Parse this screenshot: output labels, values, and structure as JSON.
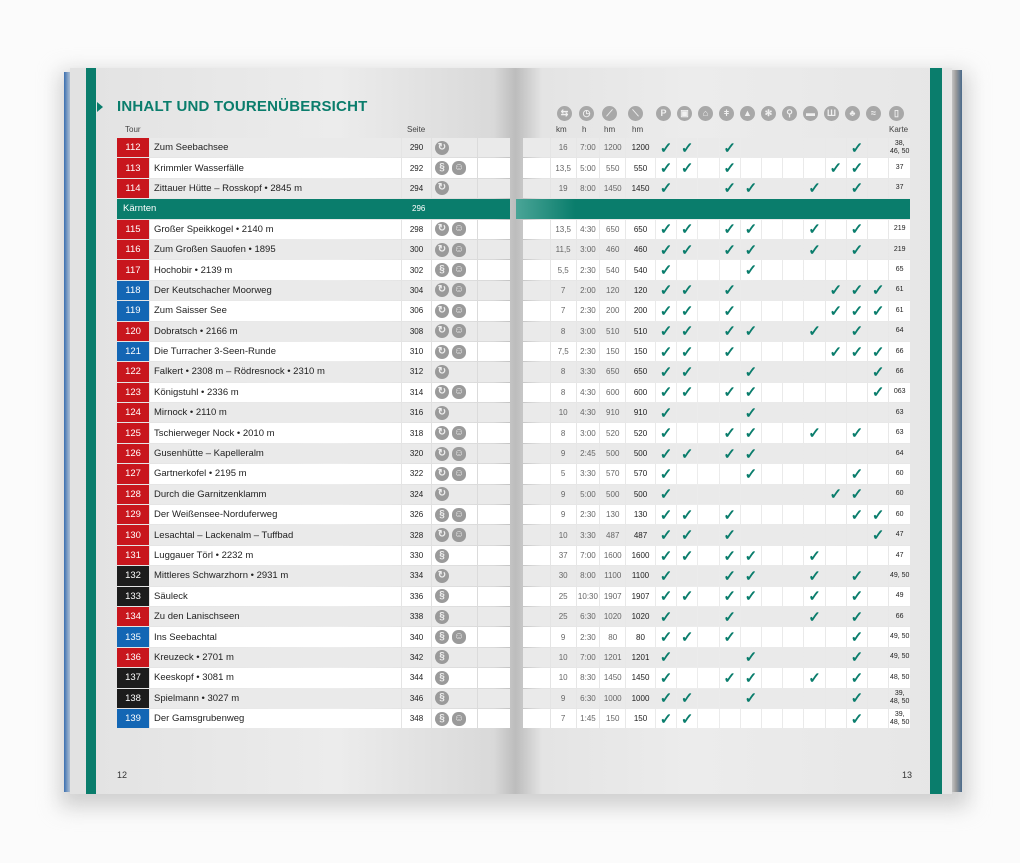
{
  "title": "INHALT UND TOURENÜBERSICHT",
  "headers": {
    "tour": "Tour",
    "seite": "Seite",
    "km": "km",
    "h": "h",
    "hm_up": "hm",
    "hm_down": "hm",
    "karte": "Karte"
  },
  "feature_icons": [
    "signpost-icon",
    "clock-icon",
    "ascent-icon",
    "descent-icon",
    "parking-icon",
    "bus-icon",
    "cable-car-icon",
    "restaurant-icon",
    "hut-icon",
    "winter-icon",
    "bike-icon",
    "bed-icon",
    "museum-icon",
    "tree-icon",
    "swimming-icon",
    "map-icon"
  ],
  "feature_glyphs": [
    "⇆",
    "◷",
    "⟋",
    "⟍",
    "P",
    "▣",
    "⌂",
    "ǂ",
    "▲",
    "✻",
    "⚲",
    "▬",
    "Ш",
    "♣",
    "≈",
    "▯"
  ],
  "colors": {
    "accent": "#0a7d6c",
    "red": "#c8161d",
    "blue": "#1366b4",
    "black": "#1c1c1c"
  },
  "check_glyph": "✓",
  "type_glyphs": {
    "loop": "↻",
    "line": "§",
    "kid": "☺"
  },
  "section": {
    "label": "Kärnten",
    "page": "296"
  },
  "rows_before_section": [
    {
      "num": "112",
      "color": "red",
      "name": "Zum Seebachsee",
      "page": "290",
      "types": [
        "loop"
      ],
      "km": "16",
      "h": "7:00",
      "up": "1200",
      "down": "1200",
      "checks": [
        0,
        1,
        3,
        9
      ],
      "karte": "38, 46, 50"
    },
    {
      "num": "113",
      "color": "red",
      "name": "Krimmler Wasserfälle",
      "page": "292",
      "types": [
        "line",
        "kid"
      ],
      "km": "13,5",
      "h": "5:00",
      "up": "550",
      "down": "550",
      "checks": [
        0,
        1,
        3,
        8,
        9
      ],
      "karte": "37"
    },
    {
      "num": "114",
      "color": "red",
      "name": "Zittauer Hütte – Rosskopf • 2845 m",
      "page": "294",
      "types": [
        "loop"
      ],
      "km": "19",
      "h": "8:00",
      "up": "1450",
      "down": "1450",
      "checks": [
        0,
        3,
        4,
        7,
        9
      ],
      "karte": "37"
    }
  ],
  "rows_after_section": [
    {
      "num": "115",
      "color": "red",
      "name": "Großer Speikkogel • 2140 m",
      "page": "298",
      "types": [
        "loop",
        "kid"
      ],
      "km": "13,5",
      "h": "4:30",
      "up": "650",
      "down": "650",
      "checks": [
        0,
        1,
        3,
        4,
        7,
        9
      ],
      "karte": "219"
    },
    {
      "num": "116",
      "color": "red",
      "name": "Zum Großen Sauofen • 1895",
      "page": "300",
      "types": [
        "loop",
        "kid"
      ],
      "km": "11,5",
      "h": "3:00",
      "up": "460",
      "down": "460",
      "checks": [
        0,
        1,
        3,
        4,
        7,
        9
      ],
      "karte": "219"
    },
    {
      "num": "117",
      "color": "red",
      "name": "Hochobir • 2139 m",
      "page": "302",
      "types": [
        "line",
        "kid"
      ],
      "km": "5,5",
      "h": "2:30",
      "up": "540",
      "down": "540",
      "checks": [
        0,
        4
      ],
      "karte": "65"
    },
    {
      "num": "118",
      "color": "blue",
      "name": "Der Keutschacher Moorweg",
      "page": "304",
      "types": [
        "loop",
        "kid"
      ],
      "km": "7",
      "h": "2:00",
      "up": "120",
      "down": "120",
      "checks": [
        0,
        1,
        3,
        8,
        9,
        10
      ],
      "karte": "61"
    },
    {
      "num": "119",
      "color": "blue",
      "name": "Zum Saisser See",
      "page": "306",
      "types": [
        "loop",
        "kid"
      ],
      "km": "7",
      "h": "2:30",
      "up": "200",
      "down": "200",
      "checks": [
        0,
        1,
        3,
        8,
        9,
        10
      ],
      "karte": "61"
    },
    {
      "num": "120",
      "color": "red",
      "name": "Dobratsch • 2166 m",
      "page": "308",
      "types": [
        "loop",
        "kid"
      ],
      "km": "8",
      "h": "3:00",
      "up": "510",
      "down": "510",
      "checks": [
        0,
        1,
        3,
        4,
        7,
        9
      ],
      "karte": "64"
    },
    {
      "num": "121",
      "color": "blue",
      "name": "Die Turracher 3-Seen-Runde",
      "page": "310",
      "types": [
        "loop",
        "kid"
      ],
      "km": "7,5",
      "h": "2:30",
      "up": "150",
      "down": "150",
      "checks": [
        0,
        1,
        3,
        8,
        9,
        10
      ],
      "karte": "66"
    },
    {
      "num": "122",
      "color": "red",
      "name": "Falkert • 2308 m – Rödresnock • 2310 m",
      "page": "312",
      "types": [
        "loop"
      ],
      "km": "8",
      "h": "3:30",
      "up": "650",
      "down": "650",
      "checks": [
        0,
        1,
        4,
        10
      ],
      "karte": "66"
    },
    {
      "num": "123",
      "color": "red",
      "name": "Königstuhl • 2336 m",
      "page": "314",
      "types": [
        "loop",
        "kid"
      ],
      "km": "8",
      "h": "4:30",
      "up": "600",
      "down": "600",
      "checks": [
        0,
        1,
        3,
        4,
        10
      ],
      "karte": "063"
    },
    {
      "num": "124",
      "color": "red",
      "name": "Mirnock • 2110 m",
      "page": "316",
      "types": [
        "loop"
      ],
      "km": "10",
      "h": "4:30",
      "up": "910",
      "down": "910",
      "checks": [
        0,
        4
      ],
      "karte": "63"
    },
    {
      "num": "125",
      "color": "red",
      "name": "Tschierweger Nock • 2010 m",
      "page": "318",
      "types": [
        "loop",
        "kid"
      ],
      "km": "8",
      "h": "3:00",
      "up": "520",
      "down": "520",
      "checks": [
        0,
        3,
        4,
        7,
        9
      ],
      "karte": "63"
    },
    {
      "num": "126",
      "color": "red",
      "name": "Gusenhütte – Kapelleralm",
      "page": "320",
      "types": [
        "loop",
        "kid"
      ],
      "km": "9",
      "h": "2:45",
      "up": "500",
      "down": "500",
      "checks": [
        0,
        1,
        3,
        4
      ],
      "karte": "64"
    },
    {
      "num": "127",
      "color": "red",
      "name": "Gartnerkofel • 2195 m",
      "page": "322",
      "types": [
        "loop",
        "kid"
      ],
      "km": "5",
      "h": "3:30",
      "up": "570",
      "down": "570",
      "checks": [
        0,
        4,
        9
      ],
      "karte": "60"
    },
    {
      "num": "128",
      "color": "red",
      "name": "Durch die Garnitzenklamm",
      "page": "324",
      "types": [
        "loop"
      ],
      "km": "9",
      "h": "5:00",
      "up": "500",
      "down": "500",
      "checks": [
        0,
        8,
        9
      ],
      "karte": "60"
    },
    {
      "num": "129",
      "color": "red",
      "name": "Der Weißensee-Norduferweg",
      "page": "326",
      "types": [
        "line",
        "kid"
      ],
      "km": "9",
      "h": "2:30",
      "up": "130",
      "down": "130",
      "checks": [
        0,
        1,
        3,
        9,
        10
      ],
      "karte": "60"
    },
    {
      "num": "130",
      "color": "red",
      "name": "Lesachtal – Lackenalm – Tuffbad",
      "page": "328",
      "types": [
        "loop",
        "kid"
      ],
      "km": "10",
      "h": "3:30",
      "up": "487",
      "down": "487",
      "checks": [
        0,
        1,
        3,
        10
      ],
      "karte": "47"
    },
    {
      "num": "131",
      "color": "red",
      "name": "Luggauer Törl • 2232 m",
      "page": "330",
      "types": [
        "line"
      ],
      "km": "37",
      "h": "7:00",
      "up": "1600",
      "down": "1600",
      "checks": [
        0,
        1,
        3,
        4,
        7
      ],
      "karte": "47"
    },
    {
      "num": "132",
      "color": "black",
      "name": "Mittleres Schwarzhorn • 2931 m",
      "page": "334",
      "types": [
        "loop"
      ],
      "km": "30",
      "h": "8:00",
      "up": "1100",
      "down": "1100",
      "checks": [
        0,
        3,
        4,
        7,
        9
      ],
      "karte": "49, 50"
    },
    {
      "num": "133",
      "color": "black",
      "name": "Säuleck",
      "page": "336",
      "types": [
        "line"
      ],
      "km": "25",
      "h": "10:30",
      "up": "1907",
      "down": "1907",
      "checks": [
        0,
        1,
        3,
        4,
        7,
        9
      ],
      "karte": "49"
    },
    {
      "num": "134",
      "color": "red",
      "name": "Zu den Lanischseen",
      "page": "338",
      "types": [
        "line"
      ],
      "km": "25",
      "h": "6:30",
      "up": "1020",
      "down": "1020",
      "checks": [
        0,
        3,
        7,
        9
      ],
      "karte": "66"
    },
    {
      "num": "135",
      "color": "blue",
      "name": "Ins Seebachtal",
      "page": "340",
      "types": [
        "line",
        "kid"
      ],
      "km": "9",
      "h": "2:30",
      "up": "80",
      "down": "80",
      "checks": [
        0,
        1,
        3,
        9
      ],
      "karte": "49, 50"
    },
    {
      "num": "136",
      "color": "red",
      "name": "Kreuzeck • 2701 m",
      "page": "342",
      "types": [
        "line"
      ],
      "km": "10",
      "h": "7:00",
      "up": "1201",
      "down": "1201",
      "checks": [
        0,
        4,
        9
      ],
      "karte": "49, 50"
    },
    {
      "num": "137",
      "color": "black",
      "name": "Keeskopf • 3081 m",
      "page": "344",
      "types": [
        "line"
      ],
      "km": "10",
      "h": "8:30",
      "up": "1450",
      "down": "1450",
      "checks": [
        0,
        3,
        4,
        7,
        9
      ],
      "karte": "48, 50"
    },
    {
      "num": "138",
      "color": "black",
      "name": "Spielmann • 3027 m",
      "page": "346",
      "types": [
        "line"
      ],
      "km": "9",
      "h": "6:30",
      "up": "1000",
      "down": "1000",
      "checks": [
        0,
        1,
        4,
        9
      ],
      "karte": "39, 48, 50"
    },
    {
      "num": "139",
      "color": "blue",
      "name": "Der Gamsgrubenweg",
      "page": "348",
      "types": [
        "line",
        "kid"
      ],
      "km": "7",
      "h": "1:45",
      "up": "150",
      "down": "150",
      "checks": [
        0,
        1,
        9
      ],
      "karte": "39, 48, 50"
    }
  ],
  "page_numbers": {
    "left": "12",
    "right": "13"
  }
}
